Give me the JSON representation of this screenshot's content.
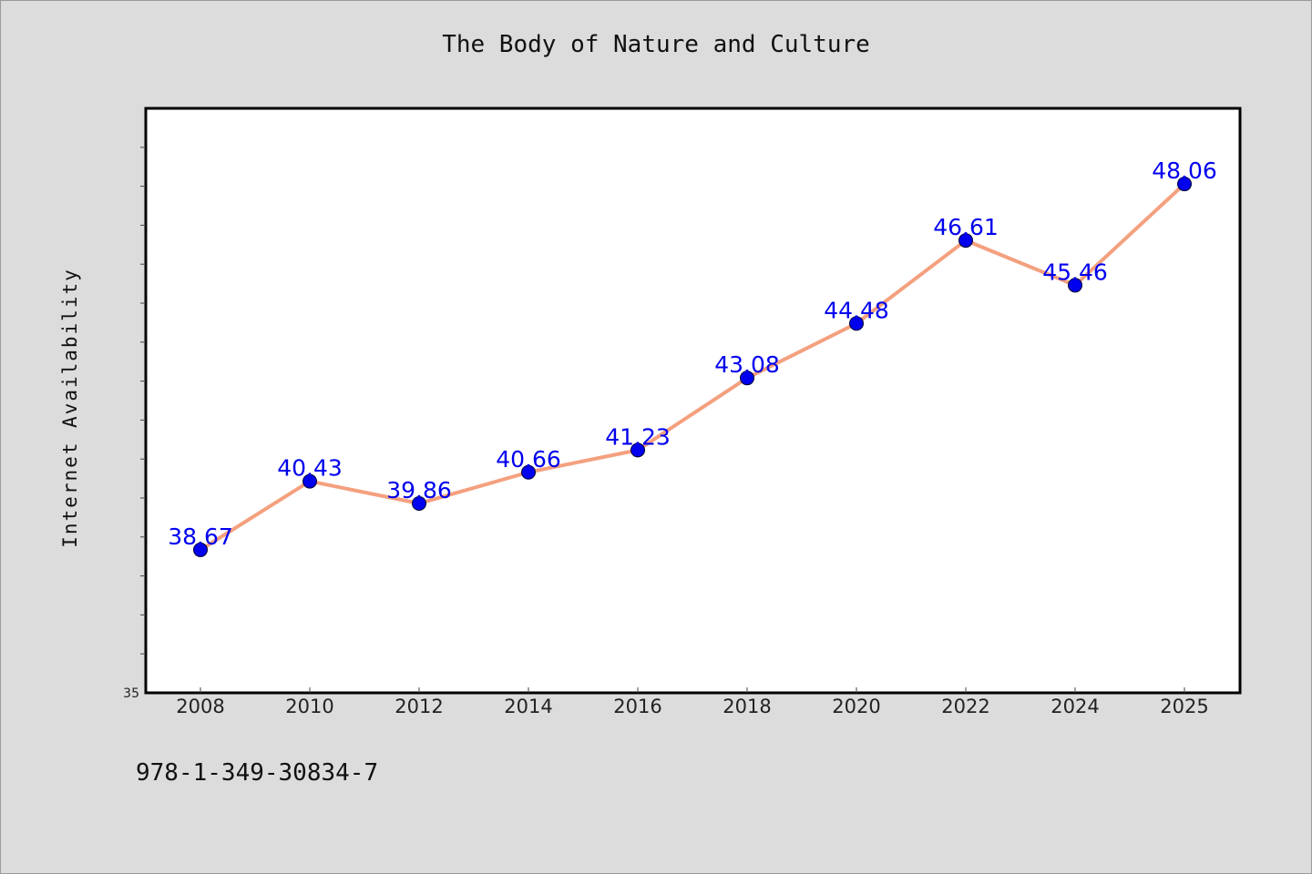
{
  "title": "The Body of Nature and Culture",
  "footer_text": "978-1-349-30834-7",
  "chart_data": {
    "type": "line",
    "title": "The Body of Nature and Culture",
    "xlabel": "",
    "ylabel": "Internet Availability",
    "categories": [
      "2008",
      "2010",
      "2012",
      "2014",
      "2016",
      "2018",
      "2020",
      "2022",
      "2024",
      "2025"
    ],
    "series": [
      {
        "values": [
          38.67,
          40.43,
          39.86,
          40.66,
          41.23,
          43.08,
          44.48,
          46.61,
          45.46,
          48.06
        ],
        "line_color": "#f4a07e",
        "marker_color": "#0000ee"
      }
    ],
    "ylim": [
      35,
      50
    ],
    "y_tick_label_shown": "35",
    "data_labels": true,
    "grid": false,
    "legend": "none",
    "background": "#ffffff",
    "page_background": "#dcdcdc"
  }
}
